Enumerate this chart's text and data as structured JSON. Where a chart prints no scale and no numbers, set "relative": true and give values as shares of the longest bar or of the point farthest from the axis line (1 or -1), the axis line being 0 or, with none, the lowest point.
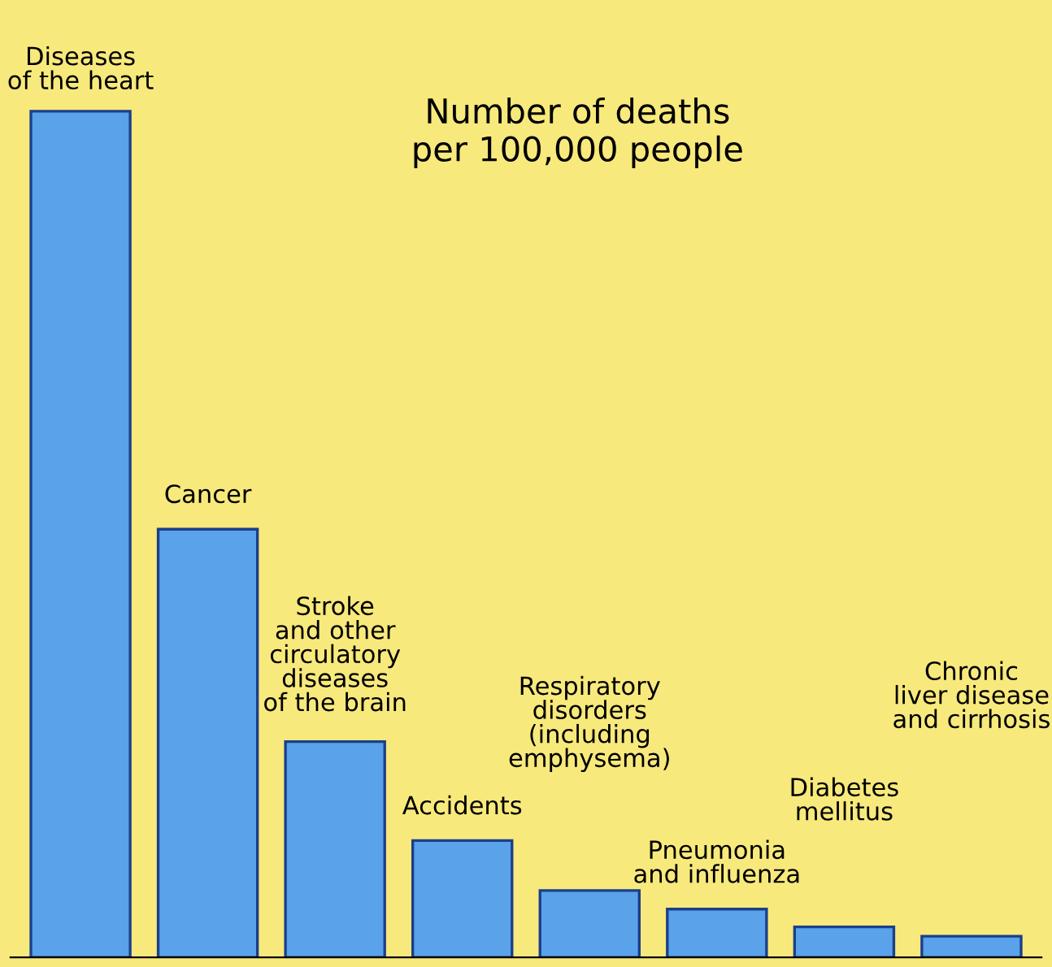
{
  "chart_data": {
    "type": "bar",
    "relative": true,
    "title": "Number of deaths\nper 100,000 people",
    "categories": [
      "Diseases\nof the heart",
      "Cancer",
      "Stroke\nand other\ncirculatory\ndiseases\nof the brain",
      "Accidents",
      "Respiratory\ndisorders\n(including\nemphysema)",
      "Pneumonia\nand influenza",
      "Diabetes\nmellitus",
      "Chronic\nliver disease\nand cirrhosis"
    ],
    "values": [
      1,
      0.506,
      0.255,
      0.138,
      0.079,
      0.057,
      0.036,
      0.025
    ],
    "color": "#5aa2ea"
  }
}
